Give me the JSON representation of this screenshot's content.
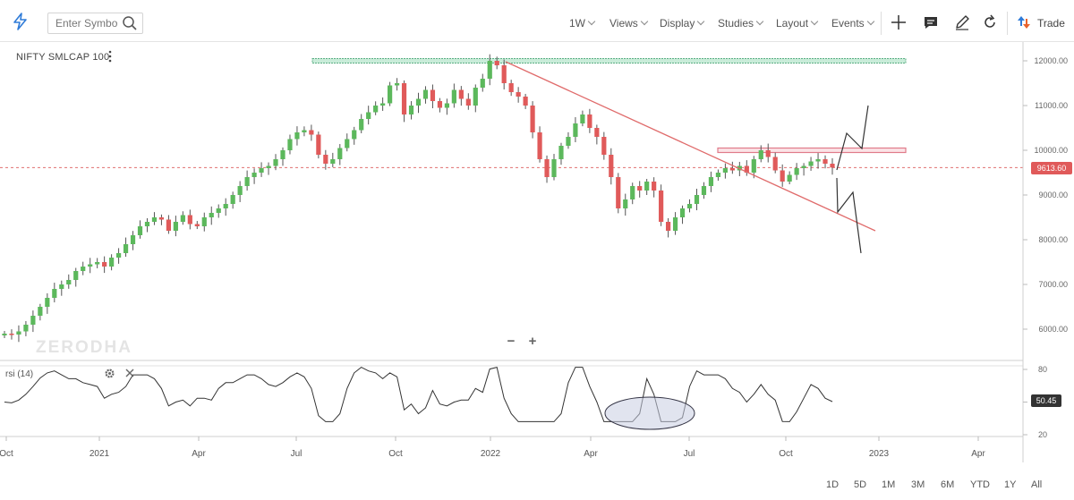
{
  "toolbar": {
    "search_placeholder": "Enter Symbol",
    "interval": "1W",
    "menus": [
      "Views",
      "Display",
      "Studies",
      "Layout",
      "Events"
    ],
    "trade_label": "Trade"
  },
  "chart": {
    "symbol": "NIFTY SMLCAP 100",
    "watermark": "ZERODHA",
    "last_price": "9613.60",
    "price_axis": [
      "12000.00",
      "11000.00",
      "10000.00",
      "9000.00",
      "8000.00",
      "7000.00",
      "6000.00"
    ],
    "time_axis": [
      "Oct",
      "2021",
      "Apr",
      "Jul",
      "Oct",
      "2022",
      "Apr",
      "Jul",
      "Oct",
      "2023",
      "Apr"
    ],
    "zoom_out": "−",
    "zoom_in": "+"
  },
  "rsi": {
    "label": "rsi (14)",
    "value": "50.45",
    "axis": [
      "80",
      "50",
      "20"
    ]
  },
  "ranges": [
    "1D",
    "5D",
    "1M",
    "3M",
    "6M",
    "YTD",
    "1Y",
    "All"
  ],
  "colors": {
    "up": "#5cb85c",
    "down": "#e05a5a",
    "accent": "#2f7bd8",
    "trend": "#e06b6b",
    "resistance": "#8fd3b0"
  },
  "chart_data": {
    "type": "candlestick",
    "weekly_closes": [
      5900,
      5880,
      5950,
      6100,
      6300,
      6500,
      6700,
      6900,
      7000,
      7100,
      7300,
      7400,
      7450,
      7500,
      7400,
      7600,
      7700,
      7900,
      8100,
      8300,
      8400,
      8500,
      8450,
      8200,
      8400,
      8550,
      8350,
      8300,
      8500,
      8600,
      8700,
      8800,
      9000,
      9200,
      9400,
      9500,
      9600,
      9650,
      9800,
      10000,
      10250,
      10400,
      10450,
      10350,
      9900,
      9700,
      9800,
      10050,
      10250,
      10450,
      10700,
      10850,
      11000,
      11050,
      11450,
      11500,
      10800,
      11000,
      11150,
      11350,
      11100,
      10950,
      11050,
      11350,
      11150,
      11000,
      11400,
      11600,
      12000,
      11900,
      11500,
      11300,
      11200,
      11000,
      10400,
      9800,
      9400,
      9800,
      10100,
      10300,
      10600,
      10800,
      10500,
      10300,
      9900,
      9400,
      8700,
      8900,
      9200,
      9100,
      9300,
      9100,
      8400,
      8200,
      8500,
      8700,
      8800,
      9000,
      9200,
      9400,
      9500,
      9600,
      9550,
      9650,
      9500,
      9800,
      10000,
      9850,
      9550,
      9300,
      9450,
      9600,
      9650,
      9750,
      9800,
      9700,
      9613
    ],
    "resistance_zone": [
      11950,
      12050
    ],
    "supply_zone": [
      9950,
      10050
    ],
    "ylim": [
      5700,
      12300
    ]
  }
}
